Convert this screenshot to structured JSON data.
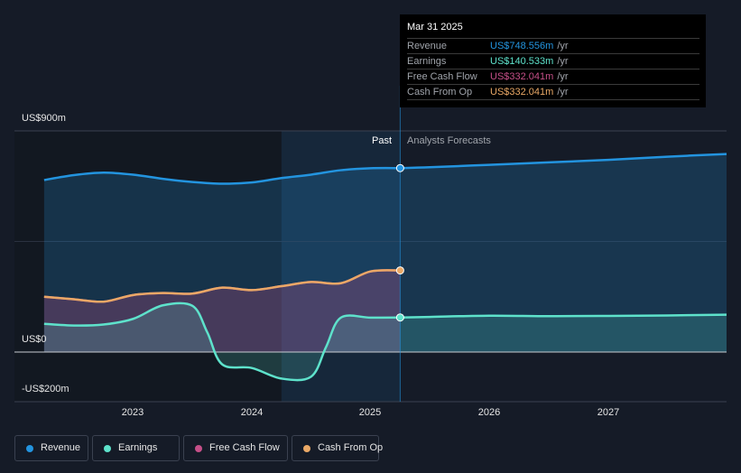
{
  "chart_data": {
    "type": "area",
    "x_axis": {
      "ticks": [
        "2023",
        "2024",
        "2025",
        "2026",
        "2027"
      ]
    },
    "y_axis": {
      "ticks": [
        "US$900m",
        "US$0",
        "-US$200m"
      ],
      "ylim": [
        -200,
        900
      ]
    },
    "regions": {
      "past_label": "Past",
      "forecast_label": "Analysts Forecasts"
    },
    "series": [
      {
        "name": "Revenue",
        "color": "#2394df",
        "past": [
          [
            2022.25,
            700
          ],
          [
            2022.5,
            720
          ],
          [
            2022.75,
            730
          ],
          [
            2023.0,
            722
          ],
          [
            2023.25,
            705
          ],
          [
            2023.5,
            692
          ],
          [
            2023.75,
            685
          ],
          [
            2024.0,
            690
          ],
          [
            2024.25,
            708
          ],
          [
            2024.5,
            722
          ],
          [
            2024.75,
            740
          ],
          [
            2025.0,
            748
          ],
          [
            2025.25,
            748.556
          ]
        ],
        "forecast": [
          [
            2025.25,
            748.556
          ],
          [
            2025.5,
            752
          ],
          [
            2026.0,
            762
          ],
          [
            2026.5,
            772
          ],
          [
            2027.0,
            782
          ],
          [
            2027.5,
            795
          ],
          [
            2028.0,
            806
          ]
        ]
      },
      {
        "name": "Earnings",
        "color": "#5ee2cb",
        "past": [
          [
            2022.25,
            115
          ],
          [
            2022.5,
            108
          ],
          [
            2022.75,
            112
          ],
          [
            2023.0,
            135
          ],
          [
            2023.25,
            190
          ],
          [
            2023.5,
            188
          ],
          [
            2023.625,
            80
          ],
          [
            2023.75,
            -50
          ],
          [
            2024.0,
            -65
          ],
          [
            2024.25,
            -108
          ],
          [
            2024.5,
            -100
          ],
          [
            2024.625,
            20
          ],
          [
            2024.75,
            140
          ],
          [
            2025.0,
            140
          ],
          [
            2025.25,
            140.533
          ]
        ],
        "forecast": [
          [
            2025.25,
            140.533
          ],
          [
            2025.5,
            143
          ],
          [
            2026.0,
            148
          ],
          [
            2026.5,
            146
          ],
          [
            2027.0,
            147
          ],
          [
            2027.5,
            149
          ],
          [
            2028.0,
            152
          ]
        ]
      },
      {
        "name": "Free Cash Flow",
        "color": "#c54f88",
        "past": [
          [
            2022.25,
            225
          ],
          [
            2022.5,
            215
          ],
          [
            2022.75,
            205
          ],
          [
            2023.0,
            232
          ],
          [
            2023.25,
            240
          ],
          [
            2023.5,
            238
          ],
          [
            2023.75,
            262
          ],
          [
            2024.0,
            252
          ],
          [
            2024.25,
            268
          ],
          [
            2024.5,
            285
          ],
          [
            2024.75,
            280
          ],
          [
            2025.0,
            328
          ],
          [
            2025.25,
            332.041
          ]
        ],
        "forecast": []
      },
      {
        "name": "Cash From Op",
        "color": "#e9a866",
        "past": [
          [
            2022.25,
            225
          ],
          [
            2022.5,
            215
          ],
          [
            2022.75,
            205
          ],
          [
            2023.0,
            232
          ],
          [
            2023.25,
            240
          ],
          [
            2023.5,
            238
          ],
          [
            2023.75,
            262
          ],
          [
            2024.0,
            252
          ],
          [
            2024.25,
            268
          ],
          [
            2024.5,
            285
          ],
          [
            2024.75,
            280
          ],
          [
            2025.0,
            328
          ],
          [
            2025.25,
            332.041
          ]
        ],
        "forecast": []
      }
    ]
  },
  "tooltip": {
    "date": "Mar 31 2025",
    "rows": [
      {
        "label": "Revenue",
        "value": "US$748.556m",
        "unit": "/yr",
        "color": "#2394df"
      },
      {
        "label": "Earnings",
        "value": "US$140.533m",
        "unit": "/yr",
        "color": "#5ee2cb"
      },
      {
        "label": "Free Cash Flow",
        "value": "US$332.041m",
        "unit": "/yr",
        "color": "#c54f88"
      },
      {
        "label": "Cash From Op",
        "value": "US$332.041m",
        "unit": "/yr",
        "color": "#e9a866"
      }
    ]
  },
  "legend": [
    {
      "label": "Revenue",
      "color": "#2394df"
    },
    {
      "label": "Earnings",
      "color": "#5ee2cb"
    },
    {
      "label": "Free Cash Flow",
      "color": "#c54f88"
    },
    {
      "label": "Cash From Op",
      "color": "#e9a866"
    }
  ]
}
